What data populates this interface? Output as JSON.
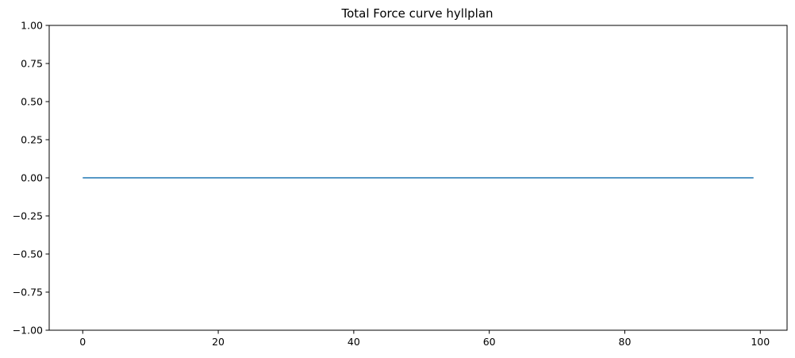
{
  "chart_data": {
    "type": "line",
    "title": "Total Force curve hyllplan",
    "xlabel": "",
    "ylabel": "",
    "xlim": [
      -4.95,
      103.95
    ],
    "ylim": [
      -1.0,
      1.0
    ],
    "xticks": [
      0,
      20,
      40,
      60,
      80,
      100
    ],
    "xtick_labels": [
      "0",
      "20",
      "40",
      "60",
      "80",
      "100"
    ],
    "yticks": [
      1.0,
      0.75,
      0.5,
      0.25,
      0.0,
      -0.25,
      -0.5,
      -0.75,
      -1.0
    ],
    "ytick_labels": [
      "1.00",
      "0.75",
      "0.50",
      "0.25",
      "0.00",
      "−0.25",
      "−0.50",
      "−0.75",
      "−1.00"
    ],
    "grid": false,
    "series": [
      {
        "color": "#1f77b4",
        "x_start": 0,
        "x_end": 99,
        "x_step": 1,
        "y_constant": 0.0
      }
    ]
  }
}
